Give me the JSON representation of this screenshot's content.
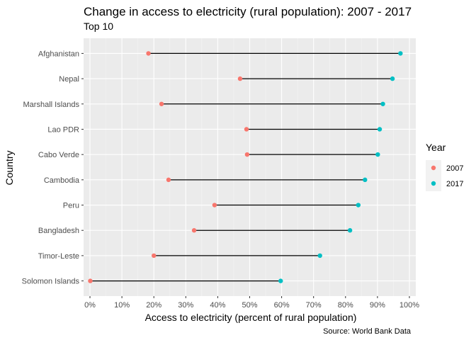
{
  "chart_data": {
    "type": "dumbbell",
    "title": "Change in access to electricity (rural population): 2007 - 2017",
    "subtitle": "Top 10",
    "xlabel": "Access to electricity (percent of rural population)",
    "ylabel": "Country",
    "caption": "Source: World Bank Data",
    "xlim": [
      -2,
      102
    ],
    "x_ticks": [
      0,
      10,
      20,
      30,
      40,
      50,
      60,
      70,
      80,
      90,
      100
    ],
    "x_tick_labels": [
      "0%",
      "10%",
      "20%",
      "30%",
      "40%",
      "50%",
      "60%",
      "70%",
      "80%",
      "90%",
      "100%"
    ],
    "grid": true,
    "legend_position": "right",
    "legend_title": "Year",
    "categories": [
      "Afghanistan",
      "Nepal",
      "Marshall Islands",
      "Lao PDR",
      "Cabo Verde",
      "Cambodia",
      "Peru",
      "Bangladesh",
      "Timor-Leste",
      "Solomon Islands"
    ],
    "series": [
      {
        "name": "2007",
        "color": "#F8766D",
        "values": [
          18.3,
          47.0,
          22.4,
          49.0,
          49.2,
          24.6,
          39.0,
          32.6,
          20.0,
          0.1
        ]
      },
      {
        "name": "2017",
        "color": "#00BFC4",
        "values": [
          97.2,
          94.7,
          91.7,
          90.7,
          90.1,
          86.1,
          84.0,
          81.4,
          72.0,
          59.7
        ]
      }
    ]
  }
}
